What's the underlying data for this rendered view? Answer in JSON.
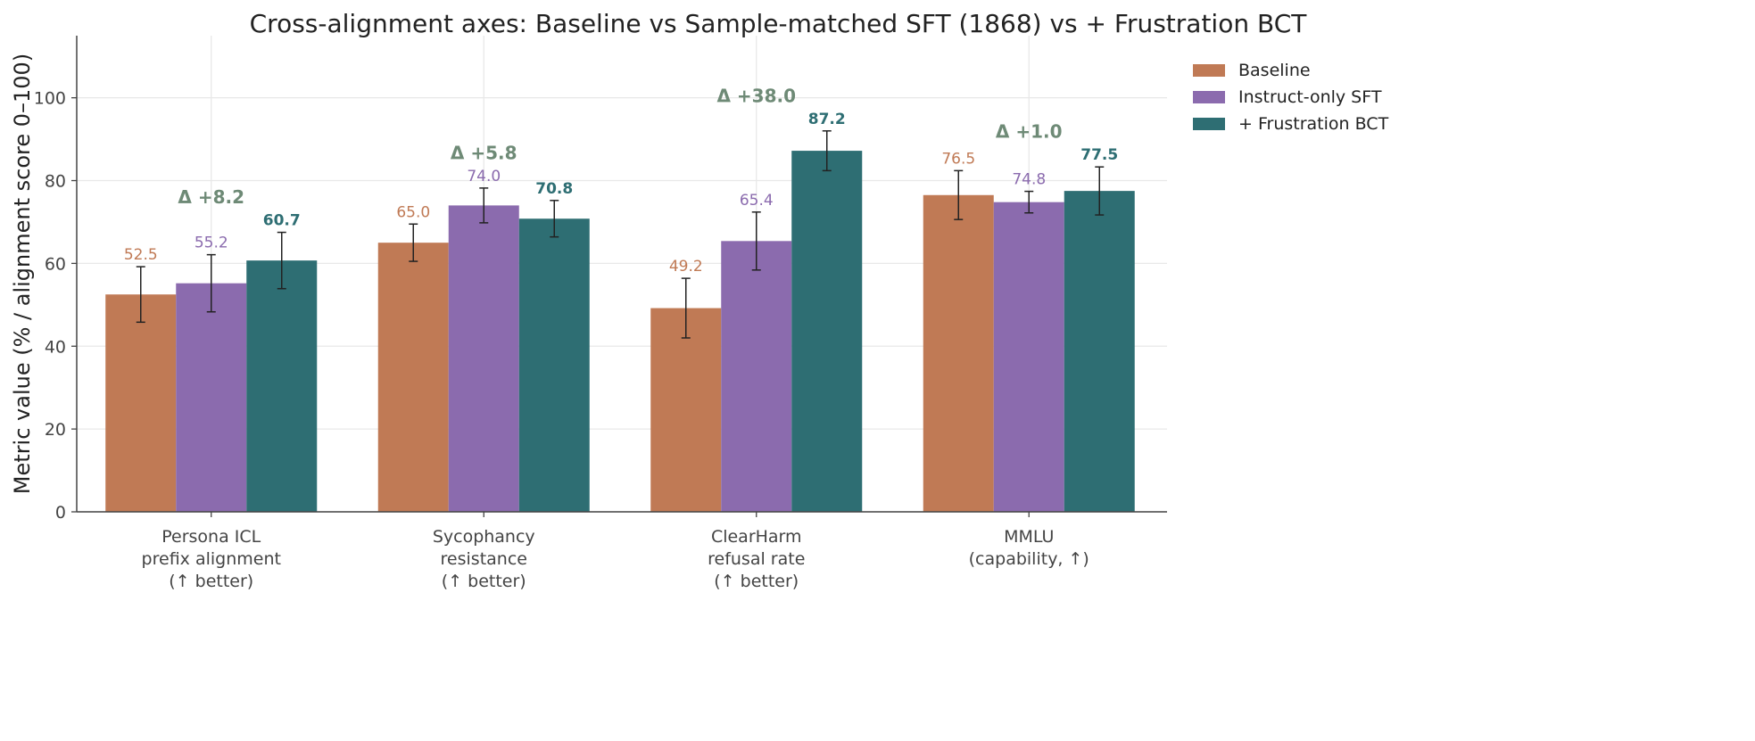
{
  "chart_data": {
    "type": "bar",
    "title": "Cross-alignment axes: Baseline vs Sample-matched SFT (1868) vs + Frustration BCT",
    "xlabel": "",
    "ylabel": "Metric value (%  /  alignment score 0–100)",
    "ylim": [
      0,
      115
    ],
    "yticks": [
      0,
      20,
      40,
      60,
      80,
      100
    ],
    "grid": true,
    "legend_position": "outside-top-right",
    "categories": [
      [
        "Persona ICL",
        "prefix alignment",
        "(↑ better)"
      ],
      [
        "Sycophancy",
        "resistance",
        "(↑ better)"
      ],
      [
        "ClearHarm",
        "refusal rate",
        "(↑ better)"
      ],
      [
        "MMLU",
        "(capability, ↑)"
      ]
    ],
    "series": [
      {
        "name": "Baseline",
        "color": "#c07a55",
        "values": [
          52.5,
          65.0,
          49.2,
          76.5
        ],
        "errors": [
          6.7,
          4.5,
          7.2,
          5.9
        ],
        "labels": [
          "52.5",
          "65.0",
          "49.2",
          "76.5"
        ],
        "bold": false
      },
      {
        "name": "Instruct-only SFT",
        "color": "#8b6bae",
        "values": [
          55.2,
          74.0,
          65.4,
          74.8
        ],
        "errors": [
          6.9,
          4.2,
          7.0,
          2.6
        ],
        "labels": [
          "55.2",
          "74.0",
          "65.4",
          "74.8"
        ],
        "bold": false
      },
      {
        "name": "+ Frustration BCT",
        "color": "#2e6e73",
        "values": [
          60.7,
          70.8,
          87.2,
          77.5
        ],
        "errors": [
          6.8,
          4.4,
          4.8,
          5.8
        ],
        "labels": [
          "60.7",
          "70.8",
          "87.2",
          "77.5"
        ],
        "bold": true
      }
    ],
    "deltas": [
      "Δ +8.2",
      "Δ +5.8",
      "Δ +38.0",
      "Δ +1.0"
    ],
    "delta_color": "#6e8a76"
  }
}
